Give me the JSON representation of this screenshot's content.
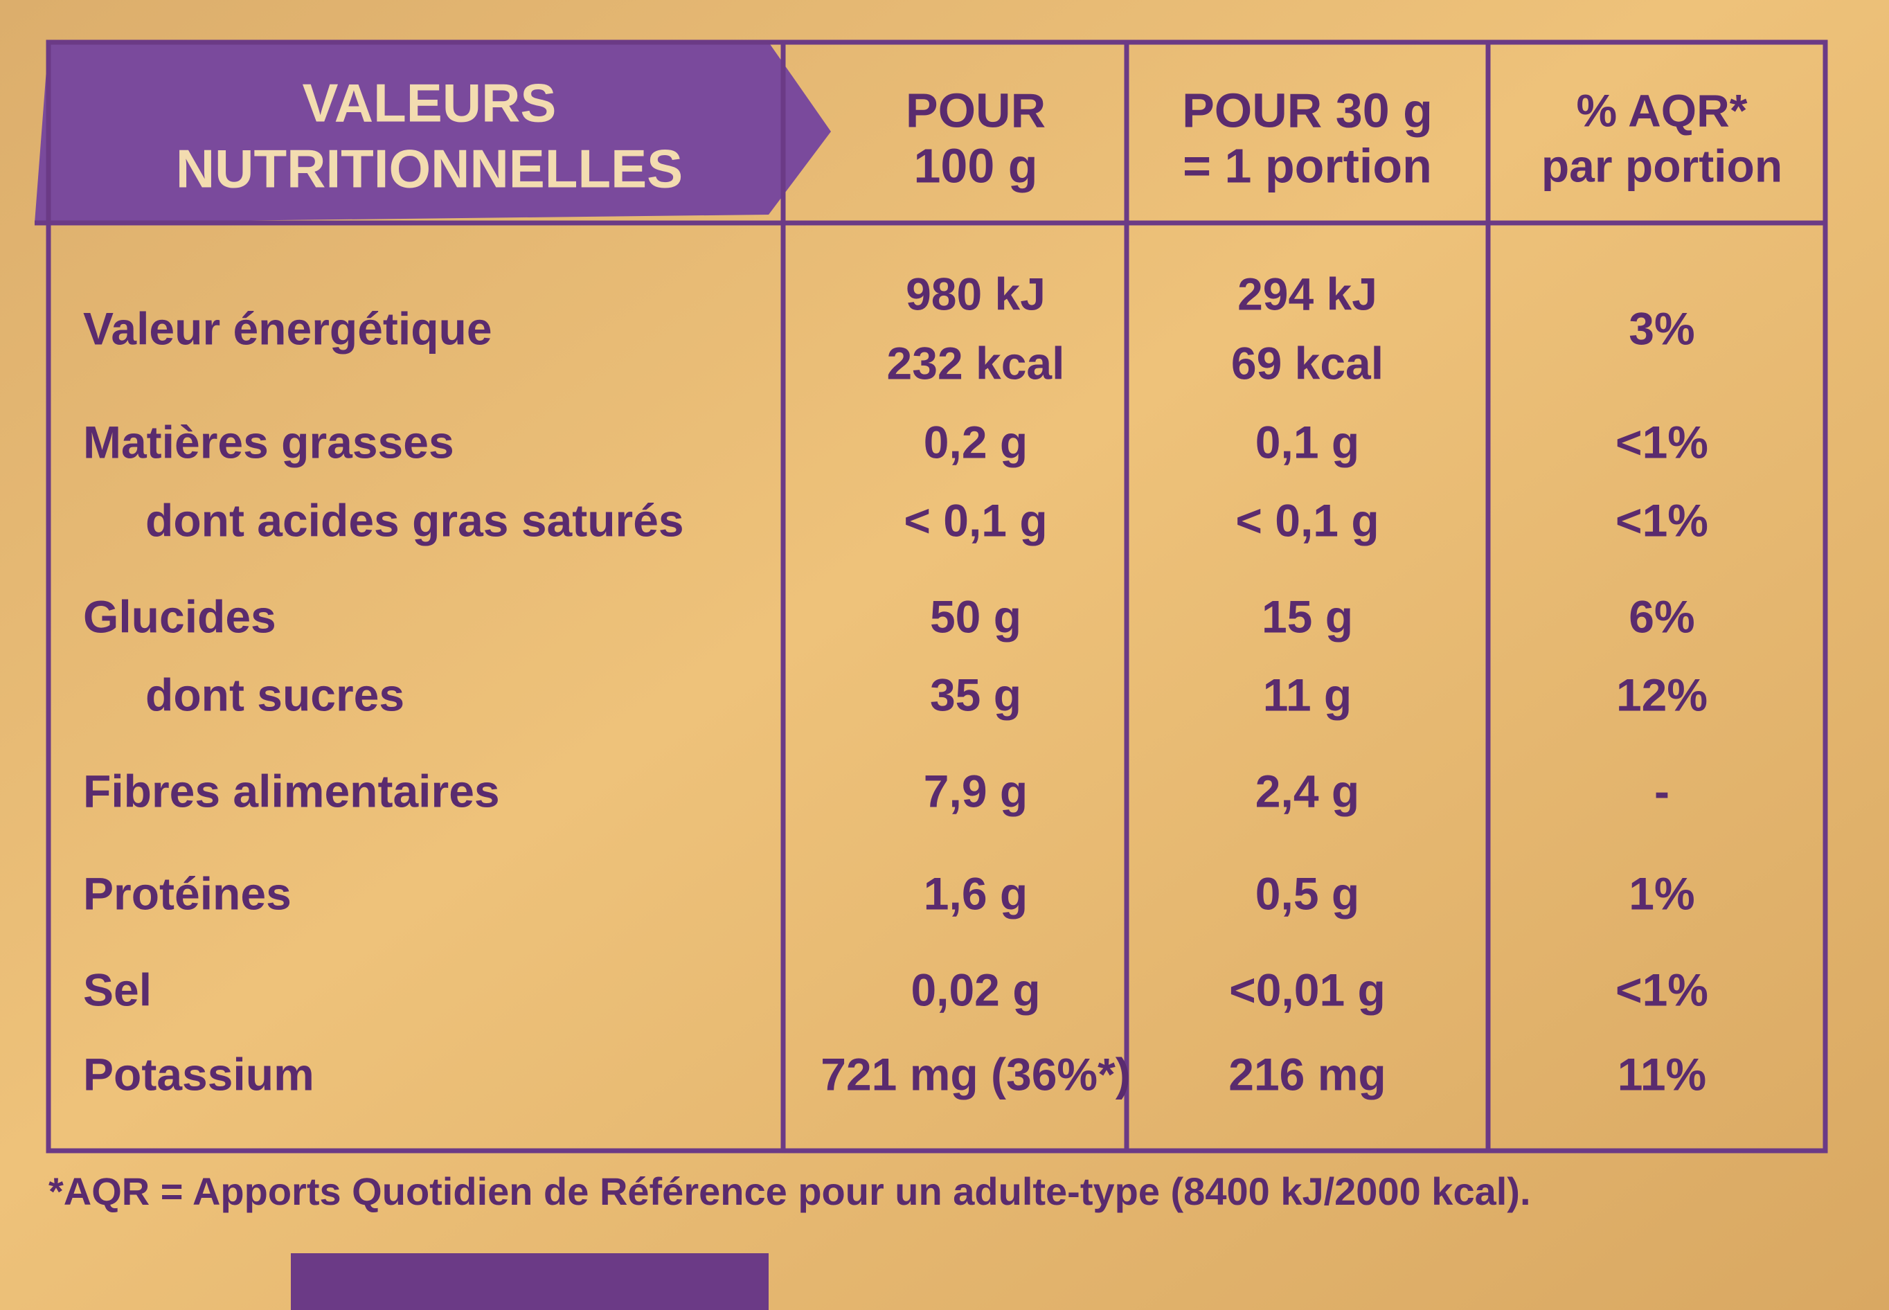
{
  "header": {
    "title": [
      "VALEURS",
      "NUTRITIONNELLES"
    ],
    "columns": [
      [
        "POUR",
        "100 g"
      ],
      [
        "POUR 30 g",
        "= 1 portion"
      ],
      [
        "% AQR*",
        "par portion"
      ]
    ]
  },
  "table": {
    "rows": [
      [
        "Valeur énergétique",
        [
          "980 kJ",
          "232 kcal"
        ],
        [
          "294 kJ",
          "69 kcal"
        ],
        [
          "3%"
        ]
      ],
      [
        "Matières grasses",
        [
          "0,2 g"
        ],
        [
          "0,1 g"
        ],
        [
          "<1%"
        ]
      ],
      [
        "dont acides gras saturés",
        [
          "< 0,1 g"
        ],
        [
          "< 0,1 g"
        ],
        [
          "<1%"
        ]
      ],
      [
        "Glucides",
        [
          "50 g"
        ],
        [
          "15 g"
        ],
        [
          "6%"
        ]
      ],
      [
        "dont sucres",
        [
          "35 g"
        ],
        [
          "11 g"
        ],
        [
          "12%"
        ]
      ],
      [
        "Fibres alimentaires",
        [
          "7,9 g"
        ],
        [
          "2,4 g"
        ],
        [
          "-"
        ]
      ],
      [
        "Protéines",
        [
          "1,6 g"
        ],
        [
          "0,5 g"
        ],
        [
          "1%"
        ]
      ],
      [
        "Sel",
        [
          "0,02 g"
        ],
        [
          "<0,01 g"
        ],
        [
          "<1%"
        ]
      ],
      [
        "Potassium",
        [
          "721 mg (36%*)"
        ],
        [
          "216 mg"
        ],
        [
          "11%"
        ]
      ]
    ]
  },
  "footnote": "*AQR = Apports Quotidien de Référence pour un adulte-type (8400 kJ/2000 kcal)."
}
